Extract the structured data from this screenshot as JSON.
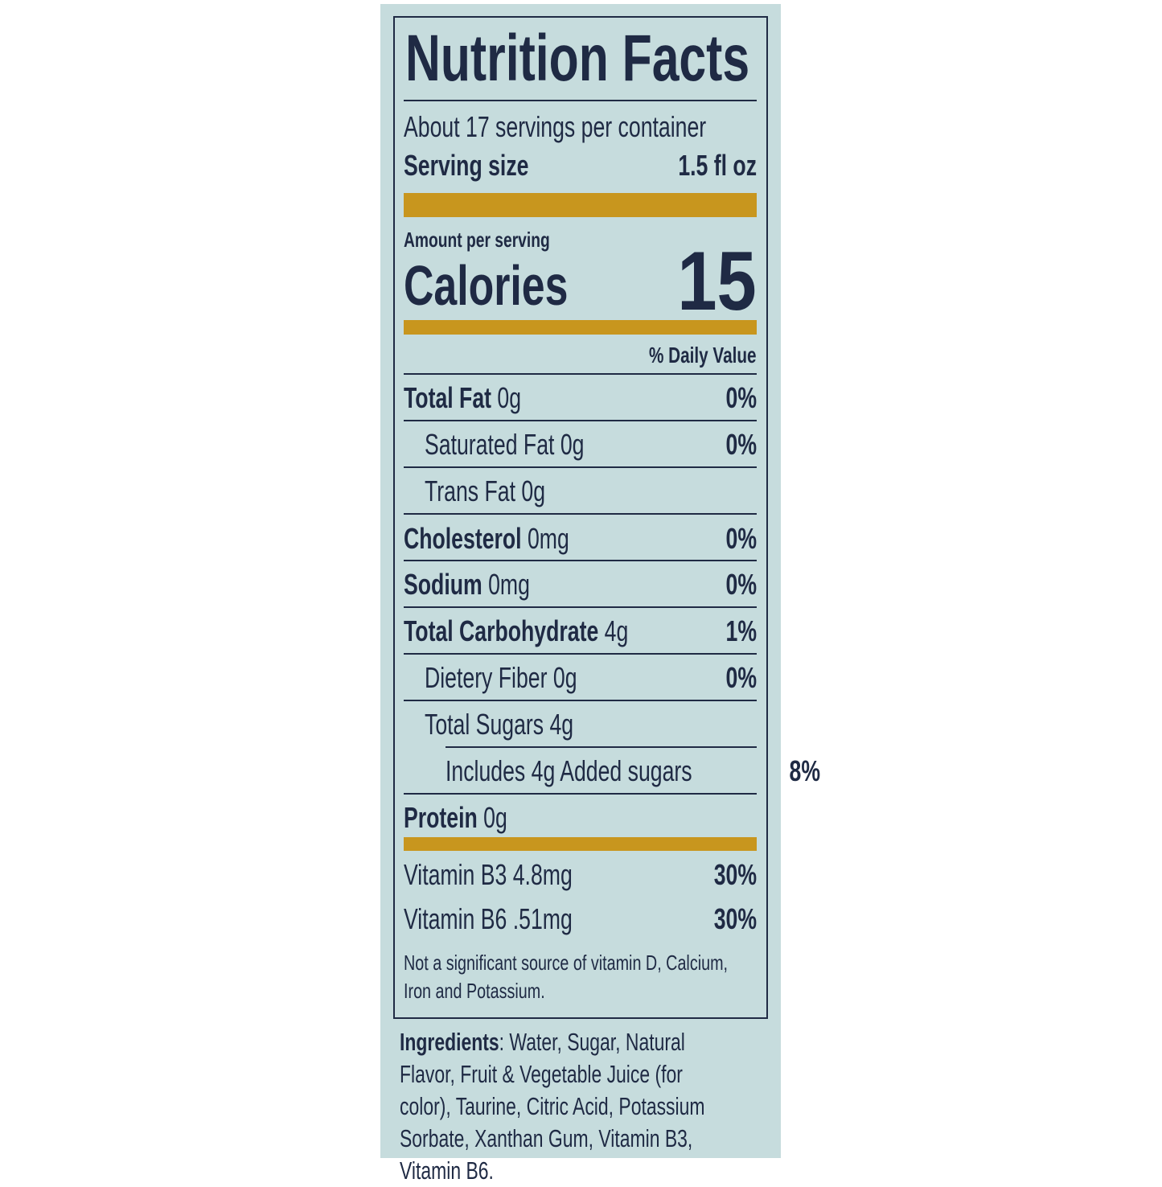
{
  "title": "Nutrition Facts",
  "servings": "About 17 servings per container",
  "serving_size": {
    "label": "Serving size",
    "value": "1.5 fl oz"
  },
  "amount_per_serving": "Amount per serving",
  "calories": {
    "label": "Calories",
    "value": "15"
  },
  "daily_value_header": "% Daily Value",
  "nutrients": [
    {
      "name": "Total Fat",
      "amount": "0g",
      "dv": "0%"
    },
    {
      "name": "Saturated Fat",
      "amount": "0g",
      "dv": "0%"
    },
    {
      "name": "Trans Fat",
      "amount": "0g"
    },
    {
      "name": "Cholesterol",
      "amount": "0mg",
      "dv": "0%"
    },
    {
      "name": "Sodium",
      "amount": "0mg",
      "dv": "0%"
    },
    {
      "name": "Total Carbohydrate",
      "amount": "4g",
      "dv": "1%"
    },
    {
      "name": "Dietery Fiber",
      "amount": "0g",
      "dv": "0%"
    },
    {
      "name": "Total Sugars",
      "amount": "4g"
    },
    {
      "name": "Includes 4g Added sugars",
      "dv": "8%"
    },
    {
      "name": "Protein",
      "amount": "0g"
    }
  ],
  "vitamins": [
    {
      "name": "Vitamin B3 4.8mg",
      "dv": "30%"
    },
    {
      "name": "Vitamin B6 .51mg",
      "dv": "30%"
    }
  ],
  "footnote": "Not a significant source of vitamin D, Calcium, Iron and Potassium.",
  "ingredients": {
    "label": "Ingredients",
    "text": ": Water, Sugar, Natural Flavor, Fruit & Vegetable Juice (for color), Taurine, Citric Acid, Potassium Sorbate, Xanthan Gum, Vitamin B3, Vitamin B6."
  }
}
